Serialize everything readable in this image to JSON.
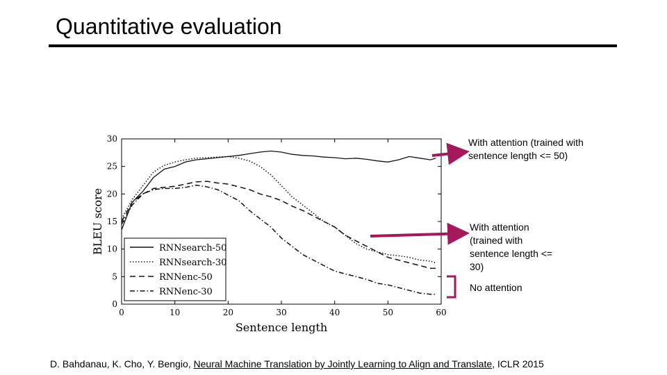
{
  "slide": {
    "title": "Quantitative evaluation",
    "citation": {
      "authors": "D. Bahdanau, K. Cho, Y. Bengio, ",
      "paper_link": "Neural Machine Translation by Jointly Learning to Align and Translate",
      "venue": ", ICLR 2015"
    },
    "annotations": {
      "rnnsearch50": "With attention (trained with sentence length <= 50)",
      "rnnsearch30": "With attention (trained with sentence length <= 30)",
      "no_attention": "No attention"
    },
    "annotation_color": "#a3195b"
  },
  "chart_data": {
    "type": "line",
    "title": "",
    "xlabel": "Sentence length",
    "ylabel": "BLEU score",
    "xlim": [
      0,
      60
    ],
    "ylim": [
      0,
      30
    ],
    "xticks": [
      0,
      10,
      20,
      30,
      40,
      50,
      60
    ],
    "yticks": [
      0,
      5,
      10,
      15,
      20,
      25,
      30
    ],
    "grid": false,
    "legend": "bottom-left",
    "x": [
      0,
      2,
      4,
      6,
      8,
      10,
      12,
      14,
      16,
      18,
      20,
      22,
      24,
      26,
      28,
      30,
      32,
      34,
      36,
      38,
      40,
      42,
      44,
      46,
      48,
      50,
      52,
      54,
      56,
      58,
      59
    ],
    "series": [
      {
        "name": "RNNsearch-50",
        "dash": "solid",
        "values": [
          13.5,
          18.5,
          20.5,
          23.0,
          24.5,
          25.0,
          25.8,
          26.2,
          26.4,
          26.6,
          26.8,
          27.0,
          27.3,
          27.6,
          27.8,
          27.6,
          27.2,
          27.0,
          26.9,
          26.7,
          26.6,
          26.4,
          26.5,
          26.3,
          26.0,
          25.8,
          26.2,
          26.8,
          26.5,
          26.2,
          26.5
        ]
      },
      {
        "name": "RNNsearch-30",
        "dash": "dotted",
        "values": [
          15.5,
          19.0,
          21.5,
          24.0,
          25.2,
          25.8,
          26.2,
          26.5,
          26.6,
          26.7,
          26.8,
          26.5,
          26.0,
          25.0,
          23.5,
          21.5,
          19.5,
          18.0,
          16.5,
          15.0,
          14.0,
          12.5,
          11.0,
          10.0,
          9.5,
          9.0,
          8.8,
          8.5,
          8.0,
          7.8,
          7.5
        ]
      },
      {
        "name": "RNNenc-50",
        "dash": "dashed",
        "values": [
          15.0,
          18.5,
          20.0,
          21.0,
          21.2,
          21.4,
          21.8,
          22.2,
          22.3,
          22.0,
          21.8,
          21.3,
          20.8,
          20.0,
          19.5,
          18.8,
          17.8,
          17.0,
          16.0,
          15.0,
          14.0,
          12.5,
          11.5,
          10.5,
          9.5,
          8.5,
          8.0,
          7.5,
          7.0,
          6.5,
          6.5
        ]
      },
      {
        "name": "RNNenc-30",
        "dash": "dashdot",
        "values": [
          14.5,
          18.0,
          20.0,
          20.8,
          21.0,
          21.0,
          21.2,
          21.6,
          21.3,
          20.8,
          19.8,
          18.8,
          17.0,
          15.5,
          14.0,
          12.0,
          10.5,
          9.0,
          8.0,
          7.0,
          6.0,
          5.5,
          5.0,
          4.5,
          3.8,
          3.5,
          3.0,
          2.5,
          2.0,
          1.8,
          1.8
        ]
      }
    ]
  }
}
